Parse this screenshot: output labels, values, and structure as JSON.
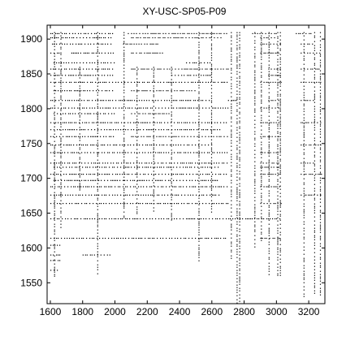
{
  "chart_data": {
    "type": "scatter",
    "title": "XY-USC-SP05-P09",
    "xlabel": "",
    "ylabel": "",
    "xlim": [
      1580,
      3300
    ],
    "ylim": [
      1520,
      1920
    ],
    "xticks": [
      1600,
      1800,
      2000,
      2200,
      2400,
      2600,
      2800,
      3000,
      3200
    ],
    "yticks": [
      1550,
      1600,
      1650,
      1700,
      1750,
      1800,
      1850,
      1900
    ],
    "grid": false,
    "legend": "none",
    "marker_color": "#000000",
    "background": "#ffffff",
    "band_rows": [
      {
        "y": 1908,
        "x_ranges": [
          [
            1600,
            2000
          ],
          [
            2080,
            2700
          ],
          [
            2850,
            3000
          ],
          [
            3120,
            3230
          ]
        ]
      },
      {
        "y": 1902,
        "x_ranges": [
          [
            1600,
            1980
          ],
          [
            2100,
            2660
          ],
          [
            2900,
            3000
          ]
        ]
      },
      {
        "y": 1893,
        "x_ranges": [
          [
            1610,
            1990
          ],
          [
            2050,
            2280
          ],
          [
            2900,
            3030
          ],
          [
            3150,
            3230
          ]
        ]
      },
      {
        "y": 1880,
        "x_ranges": [
          [
            1600,
            1660
          ],
          [
            1730,
            1990
          ],
          [
            2100,
            2300
          ],
          [
            2900,
            3030
          ],
          [
            3150,
            3280
          ]
        ]
      },
      {
        "y": 1866,
        "x_ranges": [
          [
            1620,
            2000
          ],
          [
            2440,
            2600
          ]
        ]
      },
      {
        "y": 1857,
        "x_ranges": [
          [
            1600,
            1990
          ],
          [
            2100,
            2700
          ],
          [
            2950,
            3030
          ],
          [
            3150,
            3270
          ]
        ]
      },
      {
        "y": 1848,
        "x_ranges": [
          [
            1600,
            2000
          ],
          [
            2350,
            2600
          ],
          [
            2950,
            3030
          ]
        ]
      },
      {
        "y": 1838,
        "x_ranges": [
          [
            1600,
            2700
          ],
          [
            2900,
            3030
          ],
          [
            3150,
            3280
          ]
        ]
      },
      {
        "y": 1826,
        "x_ranges": [
          [
            1620,
            1990
          ],
          [
            2100,
            2500
          ]
        ]
      },
      {
        "y": 1812,
        "x_ranges": [
          [
            1600,
            2600
          ],
          [
            2700,
            2760
          ],
          [
            2950,
            3030
          ],
          [
            3150,
            3230
          ]
        ]
      },
      {
        "y": 1801,
        "x_ranges": [
          [
            1600,
            2700
          ],
          [
            2900,
            3030
          ]
        ]
      },
      {
        "y": 1793,
        "x_ranges": [
          [
            1620,
            2000
          ],
          [
            2100,
            2350
          ]
        ]
      },
      {
        "y": 1780,
        "x_ranges": [
          [
            1600,
            2700
          ],
          [
            2900,
            3030
          ],
          [
            3150,
            3280
          ]
        ]
      },
      {
        "y": 1770,
        "x_ranges": [
          [
            1600,
            2650
          ]
        ]
      },
      {
        "y": 1760,
        "x_ranges": [
          [
            1600,
            1990
          ],
          [
            2100,
            2700
          ],
          [
            2900,
            3030
          ]
        ]
      },
      {
        "y": 1748,
        "x_ranges": [
          [
            1600,
            2600
          ],
          [
            3150,
            3280
          ]
        ]
      },
      {
        "y": 1737,
        "x_ranges": [
          [
            1600,
            2700
          ],
          [
            2900,
            3030
          ]
        ]
      },
      {
        "y": 1722,
        "x_ranges": [
          [
            1600,
            2700
          ],
          [
            2900,
            3030
          ],
          [
            3150,
            3230
          ]
        ]
      },
      {
        "y": 1716,
        "x_ranges": [
          [
            1620,
            2650
          ],
          [
            2900,
            3030
          ]
        ]
      },
      {
        "y": 1706,
        "x_ranges": [
          [
            1600,
            2700
          ],
          [
            2900,
            3030
          ],
          [
            3150,
            3280
          ]
        ]
      },
      {
        "y": 1697,
        "x_ranges": [
          [
            1620,
            2650
          ]
        ]
      },
      {
        "y": 1688,
        "x_ranges": [
          [
            1600,
            2700
          ],
          [
            2900,
            3030
          ]
        ]
      },
      {
        "y": 1676,
        "x_ranges": [
          [
            1600,
            2650
          ],
          [
            3150,
            3280
          ]
        ]
      },
      {
        "y": 1664,
        "x_ranges": [
          [
            1600,
            2700
          ],
          [
            2900,
            3030
          ]
        ]
      },
      {
        "y": 1642,
        "x_ranges": [
          [
            1600,
            3030
          ]
        ]
      },
      {
        "y": 1614,
        "x_ranges": [
          [
            1600,
            2700
          ],
          [
            2900,
            3030
          ]
        ]
      },
      {
        "y": 1604,
        "x_ranges": [
          [
            1600,
            1660
          ]
        ]
      },
      {
        "y": 1590,
        "x_ranges": [
          [
            1600,
            1660
          ],
          [
            1800,
            1980
          ]
        ]
      },
      {
        "y": 1582,
        "x_ranges": [
          [
            1600,
            1660
          ]
        ]
      },
      {
        "y": 1568,
        "x_ranges": [
          [
            1600,
            1660
          ]
        ]
      }
    ],
    "band_columns": [
      {
        "x": 1626,
        "y_ranges": [
          [
            1560,
            1910
          ]
        ]
      },
      {
        "x": 1665,
        "y_ranges": [
          [
            1630,
            1910
          ]
        ]
      },
      {
        "x": 1782,
        "y_ranges": [
          [
            1680,
            1860
          ]
        ]
      },
      {
        "x": 1893,
        "y_ranges": [
          [
            1560,
            1910
          ]
        ]
      },
      {
        "x": 2056,
        "y_ranges": [
          [
            1640,
            1910
          ]
        ]
      },
      {
        "x": 2136,
        "y_ranges": [
          [
            1650,
            1860
          ]
        ]
      },
      {
        "x": 2240,
        "y_ranges": [
          [
            1650,
            1860
          ]
        ]
      },
      {
        "x": 2350,
        "y_ranges": [
          [
            1640,
            1860
          ]
        ]
      },
      {
        "x": 2520,
        "y_ranges": [
          [
            1580,
            1910
          ]
        ]
      },
      {
        "x": 2598,
        "y_ranges": [
          [
            1650,
            1910
          ]
        ]
      },
      {
        "x": 2720,
        "y_ranges": [
          [
            1580,
            1910
          ]
        ]
      },
      {
        "x": 2756,
        "y_ranges": [
          [
            1520,
            1910
          ]
        ]
      },
      {
        "x": 2772,
        "y_ranges": [
          [
            1520,
            1910
          ]
        ]
      },
      {
        "x": 2866,
        "y_ranges": [
          [
            1600,
            1910
          ]
        ]
      },
      {
        "x": 2906,
        "y_ranges": [
          [
            1610,
            1910
          ]
        ]
      },
      {
        "x": 2954,
        "y_ranges": [
          [
            1560,
            1910
          ]
        ]
      },
      {
        "x": 3008,
        "y_ranges": [
          [
            1560,
            1910
          ]
        ]
      },
      {
        "x": 3024,
        "y_ranges": [
          [
            1560,
            1910
          ]
        ]
      },
      {
        "x": 3170,
        "y_ranges": [
          [
            1530,
            1910
          ]
        ]
      },
      {
        "x": 3236,
        "y_ranges": [
          [
            1530,
            1910
          ]
        ]
      },
      {
        "x": 3272,
        "y_ranges": [
          [
            1530,
            1910
          ]
        ]
      }
    ]
  }
}
